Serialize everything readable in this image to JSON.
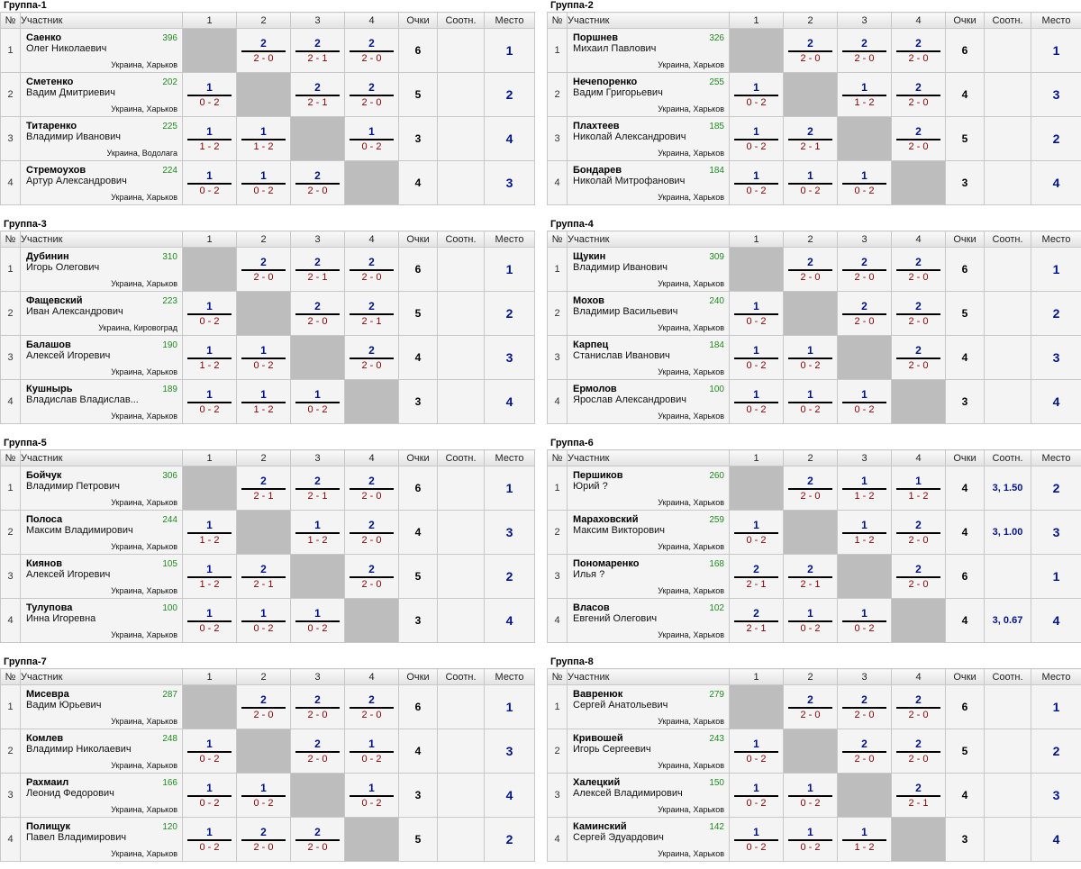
{
  "headers": {
    "num": "№",
    "participant": "Участник",
    "c1": "1",
    "c2": "2",
    "c3": "3",
    "c4": "4",
    "points": "Очки",
    "ratio": "Соотн.",
    "place": "Место"
  },
  "groups": [
    {
      "title": "Группа-1",
      "rows": [
        {
          "num": "1",
          "surname": "Саенко",
          "first": "Олег Николаевич",
          "rating": "396",
          "loc": "Украина, Харьков",
          "m": [
            null,
            {
              "p": "2",
              "s": "2 - 0"
            },
            {
              "p": "2",
              "s": "2 - 1"
            },
            {
              "p": "2",
              "s": "2 - 0"
            }
          ],
          "points": "6",
          "ratio": "",
          "place": "1"
        },
        {
          "num": "2",
          "surname": "Сметенко",
          "first": "Вадим Дмитриевич",
          "rating": "202",
          "loc": "Украина, Харьков",
          "m": [
            {
              "p": "1",
              "s": "0 - 2"
            },
            null,
            {
              "p": "2",
              "s": "2 - 1"
            },
            {
              "p": "2",
              "s": "2 - 0"
            }
          ],
          "points": "5",
          "ratio": "",
          "place": "2"
        },
        {
          "num": "3",
          "surname": "Титаренко",
          "first": "Владимир Иванович",
          "rating": "225",
          "loc": "Украина, Водолага",
          "m": [
            {
              "p": "1",
              "s": "1 - 2"
            },
            {
              "p": "1",
              "s": "1 - 2"
            },
            null,
            {
              "p": "1",
              "s": "0 - 2"
            }
          ],
          "points": "3",
          "ratio": "",
          "place": "4"
        },
        {
          "num": "4",
          "surname": "Стремоухов",
          "first": "Артур Александрович",
          "rating": "224",
          "loc": "Украина, Харьков",
          "m": [
            {
              "p": "1",
              "s": "0 - 2"
            },
            {
              "p": "1",
              "s": "0 - 2"
            },
            {
              "p": "2",
              "s": "2 - 0"
            },
            null
          ],
          "points": "4",
          "ratio": "",
          "place": "3"
        }
      ]
    },
    {
      "title": "Группа-2",
      "rows": [
        {
          "num": "1",
          "surname": "Поршнев",
          "first": "Михаил Павлович",
          "rating": "326",
          "loc": "Украина, Харьков",
          "m": [
            null,
            {
              "p": "2",
              "s": "2 - 0"
            },
            {
              "p": "2",
              "s": "2 - 0"
            },
            {
              "p": "2",
              "s": "2 - 0"
            }
          ],
          "points": "6",
          "ratio": "",
          "place": "1"
        },
        {
          "num": "2",
          "surname": "Нечепоренко",
          "first": "Вадим Григорьевич",
          "rating": "255",
          "loc": "Украина, Харьков",
          "m": [
            {
              "p": "1",
              "s": "0 - 2"
            },
            null,
            {
              "p": "1",
              "s": "1 - 2"
            },
            {
              "p": "2",
              "s": "2 - 0"
            }
          ],
          "points": "4",
          "ratio": "",
          "place": "3"
        },
        {
          "num": "3",
          "surname": "Плахтеев",
          "first": "Николай Александрович",
          "rating": "185",
          "loc": "Украина, Харьков",
          "m": [
            {
              "p": "1",
              "s": "0 - 2"
            },
            {
              "p": "2",
              "s": "2 - 1"
            },
            null,
            {
              "p": "2",
              "s": "2 - 0"
            }
          ],
          "points": "5",
          "ratio": "",
          "place": "2"
        },
        {
          "num": "4",
          "surname": "Бондарев",
          "first": "Николай Митрофанович",
          "rating": "184",
          "loc": "Украина, Харьков",
          "m": [
            {
              "p": "1",
              "s": "0 - 2"
            },
            {
              "p": "1",
              "s": "0 - 2"
            },
            {
              "p": "1",
              "s": "0 - 2"
            },
            null
          ],
          "points": "3",
          "ratio": "",
          "place": "4"
        }
      ]
    },
    {
      "title": "Группа-3",
      "rows": [
        {
          "num": "1",
          "surname": "Дубинин",
          "first": "Игорь Олегович",
          "rating": "310",
          "loc": "Украина, Харьков",
          "m": [
            null,
            {
              "p": "2",
              "s": "2 - 0"
            },
            {
              "p": "2",
              "s": "2 - 1"
            },
            {
              "p": "2",
              "s": "2 - 0"
            }
          ],
          "points": "6",
          "ratio": "",
          "place": "1"
        },
        {
          "num": "2",
          "surname": "Фащевский",
          "first": "Иван Александрович",
          "rating": "223",
          "loc": "Украина, Кировоград",
          "m": [
            {
              "p": "1",
              "s": "0 - 2"
            },
            null,
            {
              "p": "2",
              "s": "2 - 0"
            },
            {
              "p": "2",
              "s": "2 - 1"
            }
          ],
          "points": "5",
          "ratio": "",
          "place": "2"
        },
        {
          "num": "3",
          "surname": "Балашов",
          "first": "Алексей Игоревич",
          "rating": "190",
          "loc": "Украина, Харьков",
          "m": [
            {
              "p": "1",
              "s": "1 - 2"
            },
            {
              "p": "1",
              "s": "0 - 2"
            },
            null,
            {
              "p": "2",
              "s": "2 - 0"
            }
          ],
          "points": "4",
          "ratio": "",
          "place": "3"
        },
        {
          "num": "4",
          "surname": "Кушнырь",
          "first": "Владислав Владислав...",
          "rating": "189",
          "loc": "Украина, Харьков",
          "m": [
            {
              "p": "1",
              "s": "0 - 2"
            },
            {
              "p": "1",
              "s": "1 - 2"
            },
            {
              "p": "1",
              "s": "0 - 2"
            },
            null
          ],
          "points": "3",
          "ratio": "",
          "place": "4"
        }
      ]
    },
    {
      "title": "Группа-4",
      "rows": [
        {
          "num": "1",
          "surname": "Щукин",
          "first": "Владимир Иванович",
          "rating": "309",
          "loc": "Украина, Харьков",
          "m": [
            null,
            {
              "p": "2",
              "s": "2 - 0"
            },
            {
              "p": "2",
              "s": "2 - 0"
            },
            {
              "p": "2",
              "s": "2 - 0"
            }
          ],
          "points": "6",
          "ratio": "",
          "place": "1"
        },
        {
          "num": "2",
          "surname": "Мохов",
          "first": "Владимир Васильевич",
          "rating": "240",
          "loc": "Украина, Харьков",
          "m": [
            {
              "p": "1",
              "s": "0 - 2"
            },
            null,
            {
              "p": "2",
              "s": "2 - 0"
            },
            {
              "p": "2",
              "s": "2 - 0"
            }
          ],
          "points": "5",
          "ratio": "",
          "place": "2"
        },
        {
          "num": "3",
          "surname": "Карпец",
          "first": "Станислав Иванович",
          "rating": "184",
          "loc": "Украина, Харьков",
          "m": [
            {
              "p": "1",
              "s": "0 - 2"
            },
            {
              "p": "1",
              "s": "0 - 2"
            },
            null,
            {
              "p": "2",
              "s": "2 - 0"
            }
          ],
          "points": "4",
          "ratio": "",
          "place": "3"
        },
        {
          "num": "4",
          "surname": "Ермолов",
          "first": "Ярослав Александрович",
          "rating": "100",
          "loc": "Украина, Харьков",
          "m": [
            {
              "p": "1",
              "s": "0 - 2"
            },
            {
              "p": "1",
              "s": "0 - 2"
            },
            {
              "p": "1",
              "s": "0 - 2"
            },
            null
          ],
          "points": "3",
          "ratio": "",
          "place": "4"
        }
      ]
    },
    {
      "title": "Группа-5",
      "rows": [
        {
          "num": "1",
          "surname": "Бойчук",
          "first": "Владимир Петрович",
          "rating": "306",
          "loc": "Украина, Харьков",
          "m": [
            null,
            {
              "p": "2",
              "s": "2 - 1"
            },
            {
              "p": "2",
              "s": "2 - 1"
            },
            {
              "p": "2",
              "s": "2 - 0"
            }
          ],
          "points": "6",
          "ratio": "",
          "place": "1"
        },
        {
          "num": "2",
          "surname": "Полоса",
          "first": "Максим Владимирович",
          "rating": "244",
          "loc": "Украина, Харьков",
          "m": [
            {
              "p": "1",
              "s": "1 - 2"
            },
            null,
            {
              "p": "1",
              "s": "1 - 2"
            },
            {
              "p": "2",
              "s": "2 - 0"
            }
          ],
          "points": "4",
          "ratio": "",
          "place": "3"
        },
        {
          "num": "3",
          "surname": "Киянов",
          "first": "Алексей Игоревич",
          "rating": "105",
          "loc": "Украина, Харьков",
          "m": [
            {
              "p": "1",
              "s": "1 - 2"
            },
            {
              "p": "2",
              "s": "2 - 1"
            },
            null,
            {
              "p": "2",
              "s": "2 - 0"
            }
          ],
          "points": "5",
          "ratio": "",
          "place": "2"
        },
        {
          "num": "4",
          "surname": "Тулупова",
          "first": "Инна Игоревна",
          "rating": "100",
          "loc": "Украина, Харьков",
          "m": [
            {
              "p": "1",
              "s": "0 - 2"
            },
            {
              "p": "1",
              "s": "0 - 2"
            },
            {
              "p": "1",
              "s": "0 - 2"
            },
            null
          ],
          "points": "3",
          "ratio": "",
          "place": "4"
        }
      ]
    },
    {
      "title": "Группа-6",
      "rows": [
        {
          "num": "1",
          "surname": "Першиков",
          "first": "Юрий ?",
          "rating": "260",
          "loc": "Украина, Харьков",
          "m": [
            null,
            {
              "p": "2",
              "s": "2 - 0"
            },
            {
              "p": "1",
              "s": "1 - 2"
            },
            {
              "p": "1",
              "s": "1 - 2"
            }
          ],
          "points": "4",
          "ratio": "3, 1.50",
          "place": "2"
        },
        {
          "num": "2",
          "surname": "Мараховский",
          "first": "Максим Викторович",
          "rating": "259",
          "loc": "Украина, Харьков",
          "m": [
            {
              "p": "1",
              "s": "0 - 2"
            },
            null,
            {
              "p": "1",
              "s": "1 - 2"
            },
            {
              "p": "2",
              "s": "2 - 0"
            }
          ],
          "points": "4",
          "ratio": "3, 1.00",
          "place": "3"
        },
        {
          "num": "3",
          "surname": "Пономаренко",
          "first": "Илья ?",
          "rating": "168",
          "loc": "Украина, Харьков",
          "m": [
            {
              "p": "2",
              "s": "2 - 1"
            },
            {
              "p": "2",
              "s": "2 - 1"
            },
            null,
            {
              "p": "2",
              "s": "2 - 0"
            }
          ],
          "points": "6",
          "ratio": "",
          "place": "1"
        },
        {
          "num": "4",
          "surname": "Власов",
          "first": "Евгений Олегович",
          "rating": "102",
          "loc": "Украина, Харьков",
          "m": [
            {
              "p": "2",
              "s": "2 - 1"
            },
            {
              "p": "1",
              "s": "0 - 2"
            },
            {
              "p": "1",
              "s": "0 - 2"
            },
            null
          ],
          "points": "4",
          "ratio": "3, 0.67",
          "place": "4"
        }
      ]
    },
    {
      "title": "Группа-7",
      "rows": [
        {
          "num": "1",
          "surname": "Мисевра",
          "first": "Вадим Юрьевич",
          "rating": "287",
          "loc": "Украина, Харьков",
          "m": [
            null,
            {
              "p": "2",
              "s": "2 - 0"
            },
            {
              "p": "2",
              "s": "2 - 0"
            },
            {
              "p": "2",
              "s": "2 - 0"
            }
          ],
          "points": "6",
          "ratio": "",
          "place": "1"
        },
        {
          "num": "2",
          "surname": "Комлев",
          "first": "Владимир Николаевич",
          "rating": "248",
          "loc": "Украина, Харьков",
          "m": [
            {
              "p": "1",
              "s": "0 - 2"
            },
            null,
            {
              "p": "2",
              "s": "2 - 0"
            },
            {
              "p": "1",
              "s": "0 - 2"
            }
          ],
          "points": "4",
          "ratio": "",
          "place": "3"
        },
        {
          "num": "3",
          "surname": "Рахмаил",
          "first": "Леонид Федорович",
          "rating": "166",
          "loc": "Украина, Харьков",
          "m": [
            {
              "p": "1",
              "s": "0 - 2"
            },
            {
              "p": "1",
              "s": "0 - 2"
            },
            null,
            {
              "p": "1",
              "s": "0 - 2"
            }
          ],
          "points": "3",
          "ratio": "",
          "place": "4"
        },
        {
          "num": "4",
          "surname": "Полищук",
          "first": "Павел Владимирович",
          "rating": "120",
          "loc": "Украина, Харьков",
          "m": [
            {
              "p": "1",
              "s": "0 - 2"
            },
            {
              "p": "2",
              "s": "2 - 0"
            },
            {
              "p": "2",
              "s": "2 - 0"
            },
            null
          ],
          "points": "5",
          "ratio": "",
          "place": "2"
        }
      ]
    },
    {
      "title": "Группа-8",
      "rows": [
        {
          "num": "1",
          "surname": "Вавренюк",
          "first": "Сергей Анатольевич",
          "rating": "279",
          "loc": "Украина, Харьков",
          "m": [
            null,
            {
              "p": "2",
              "s": "2 - 0"
            },
            {
              "p": "2",
              "s": "2 - 0"
            },
            {
              "p": "2",
              "s": "2 - 0"
            }
          ],
          "points": "6",
          "ratio": "",
          "place": "1"
        },
        {
          "num": "2",
          "surname": "Кривошей",
          "first": "Игорь Сергеевич",
          "rating": "243",
          "loc": "Украина, Харьков",
          "m": [
            {
              "p": "1",
              "s": "0 - 2"
            },
            null,
            {
              "p": "2",
              "s": "2 - 0"
            },
            {
              "p": "2",
              "s": "2 - 0"
            }
          ],
          "points": "5",
          "ratio": "",
          "place": "2"
        },
        {
          "num": "3",
          "surname": "Халецкий",
          "first": "Алексей Владимирович",
          "rating": "150",
          "loc": "Украина, Харьков",
          "m": [
            {
              "p": "1",
              "s": "0 - 2"
            },
            {
              "p": "1",
              "s": "0 - 2"
            },
            null,
            {
              "p": "2",
              "s": "2 - 1"
            }
          ],
          "points": "4",
          "ratio": "",
          "place": "3"
        },
        {
          "num": "4",
          "surname": "Каминский",
          "first": "Сергей Эдуардович",
          "rating": "142",
          "loc": "Украина, Харьков",
          "m": [
            {
              "p": "1",
              "s": "0 - 2"
            },
            {
              "p": "1",
              "s": "0 - 2"
            },
            {
              "p": "1",
              "s": "1 - 2"
            },
            null
          ],
          "points": "3",
          "ratio": "",
          "place": "4"
        }
      ]
    }
  ]
}
